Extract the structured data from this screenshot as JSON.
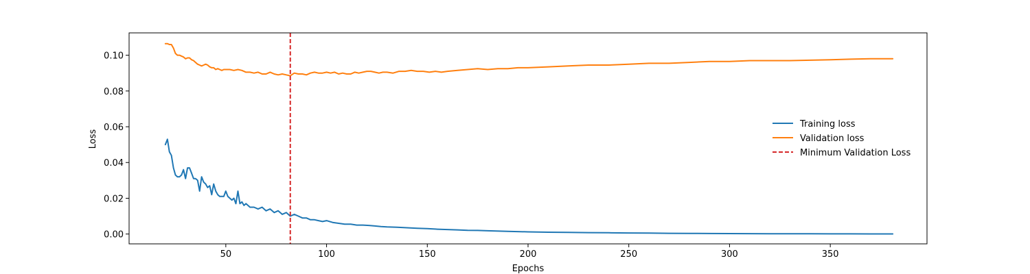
{
  "chart_data": {
    "type": "line",
    "title": "",
    "xlabel": "Epochs",
    "ylabel": "Loss",
    "xlim": [
      2,
      398
    ],
    "ylim": [
      -0.0055,
      0.1125
    ],
    "xticks": [
      50,
      100,
      150,
      200,
      250,
      300,
      350
    ],
    "yticks": [
      0.0,
      0.02,
      0.04,
      0.06,
      0.08,
      0.1
    ],
    "ytick_labels": [
      "0.00",
      "0.02",
      "0.04",
      "0.06",
      "0.08",
      "0.10"
    ],
    "grid": false,
    "legend_position": "center-right",
    "series": [
      {
        "name": "Training loss",
        "color": "#1f77b4",
        "x": [
          20,
          21,
          22,
          23,
          24,
          25,
          26,
          27,
          28,
          29,
          30,
          31,
          32,
          33,
          34,
          35,
          36,
          37,
          38,
          39,
          40,
          41,
          42,
          43,
          44,
          45,
          46,
          47,
          48,
          49,
          50,
          51,
          52,
          53,
          54,
          55,
          56,
          57,
          58,
          59,
          60,
          62,
          64,
          66,
          68,
          70,
          72,
          74,
          76,
          78,
          80,
          82,
          84,
          86,
          88,
          90,
          92,
          94,
          96,
          98,
          100,
          103,
          106,
          109,
          112,
          115,
          118,
          121,
          124,
          127,
          130,
          135,
          140,
          145,
          150,
          155,
          160,
          165,
          170,
          175,
          180,
          190,
          200,
          210,
          220,
          230,
          240,
          250,
          260,
          270,
          280,
          290,
          300,
          310,
          320,
          330,
          340,
          350,
          360,
          370,
          381
        ],
        "y": [
          0.05,
          0.053,
          0.046,
          0.044,
          0.037,
          0.033,
          0.032,
          0.032,
          0.033,
          0.036,
          0.031,
          0.037,
          0.037,
          0.034,
          0.031,
          0.031,
          0.03,
          0.024,
          0.032,
          0.029,
          0.028,
          0.026,
          0.027,
          0.022,
          0.028,
          0.024,
          0.022,
          0.021,
          0.021,
          0.021,
          0.024,
          0.021,
          0.02,
          0.019,
          0.02,
          0.017,
          0.024,
          0.017,
          0.018,
          0.016,
          0.017,
          0.015,
          0.015,
          0.014,
          0.015,
          0.013,
          0.014,
          0.012,
          0.013,
          0.011,
          0.012,
          0.01,
          0.011,
          0.01,
          0.009,
          0.009,
          0.008,
          0.008,
          0.0075,
          0.007,
          0.0075,
          0.0065,
          0.006,
          0.0055,
          0.0055,
          0.005,
          0.005,
          0.0048,
          0.0045,
          0.0042,
          0.004,
          0.0038,
          0.0035,
          0.0032,
          0.003,
          0.0027,
          0.0025,
          0.0023,
          0.0021,
          0.002,
          0.0018,
          0.0015,
          0.0012,
          0.001,
          0.0009,
          0.0008,
          0.0007,
          0.0006,
          0.0005,
          0.0004,
          0.00035,
          0.0003,
          0.00025,
          0.0002,
          0.00018,
          0.00015,
          0.00012,
          0.0001,
          8e-05,
          6e-05,
          5e-05
        ]
      },
      {
        "name": "Validation loss",
        "color": "#ff7f0e",
        "x": [
          20,
          21,
          22,
          23,
          24,
          25,
          26,
          27,
          28,
          29,
          30,
          31,
          32,
          33,
          34,
          35,
          36,
          37,
          38,
          39,
          40,
          41,
          42,
          43,
          44,
          45,
          46,
          47,
          48,
          49,
          50,
          52,
          54,
          56,
          58,
          60,
          62,
          64,
          66,
          68,
          70,
          72,
          74,
          76,
          78,
          80,
          82,
          84,
          86,
          88,
          90,
          92,
          94,
          96,
          98,
          100,
          102,
          104,
          106,
          108,
          110,
          112,
          114,
          116,
          118,
          120,
          122,
          124,
          126,
          128,
          130,
          133,
          136,
          139,
          142,
          145,
          148,
          151,
          154,
          157,
          160,
          165,
          170,
          175,
          180,
          185,
          190,
          195,
          200,
          210,
          220,
          230,
          240,
          250,
          260,
          270,
          280,
          290,
          300,
          310,
          320,
          330,
          340,
          350,
          360,
          370,
          381
        ],
        "y": [
          0.1065,
          0.1065,
          0.106,
          0.106,
          0.104,
          0.101,
          0.1,
          0.1,
          0.0995,
          0.099,
          0.098,
          0.0985,
          0.0985,
          0.0975,
          0.097,
          0.096,
          0.095,
          0.0945,
          0.094,
          0.0945,
          0.095,
          0.0945,
          0.0935,
          0.093,
          0.093,
          0.092,
          0.0925,
          0.092,
          0.0915,
          0.092,
          0.092,
          0.092,
          0.0915,
          0.092,
          0.0915,
          0.0905,
          0.0905,
          0.09,
          0.0905,
          0.0895,
          0.0895,
          0.0905,
          0.0895,
          0.089,
          0.0895,
          0.089,
          0.0885,
          0.09,
          0.0895,
          0.0895,
          0.089,
          0.09,
          0.0905,
          0.09,
          0.09,
          0.0905,
          0.09,
          0.0905,
          0.0895,
          0.09,
          0.0895,
          0.0895,
          0.0905,
          0.09,
          0.0905,
          0.091,
          0.091,
          0.0905,
          0.09,
          0.0905,
          0.0905,
          0.09,
          0.091,
          0.091,
          0.0915,
          0.091,
          0.091,
          0.0905,
          0.091,
          0.0905,
          0.091,
          0.0915,
          0.092,
          0.0925,
          0.092,
          0.0925,
          0.0925,
          0.093,
          0.093,
          0.0935,
          0.094,
          0.0945,
          0.0945,
          0.095,
          0.0955,
          0.0955,
          0.096,
          0.0965,
          0.0965,
          0.097,
          0.097,
          0.097,
          0.0972,
          0.0975,
          0.0978,
          0.098,
          0.098
        ]
      }
    ],
    "vlines": [
      {
        "name": "Minimum Validation Loss",
        "x": 82,
        "color": "#d62728",
        "style": "dashed"
      }
    ]
  }
}
